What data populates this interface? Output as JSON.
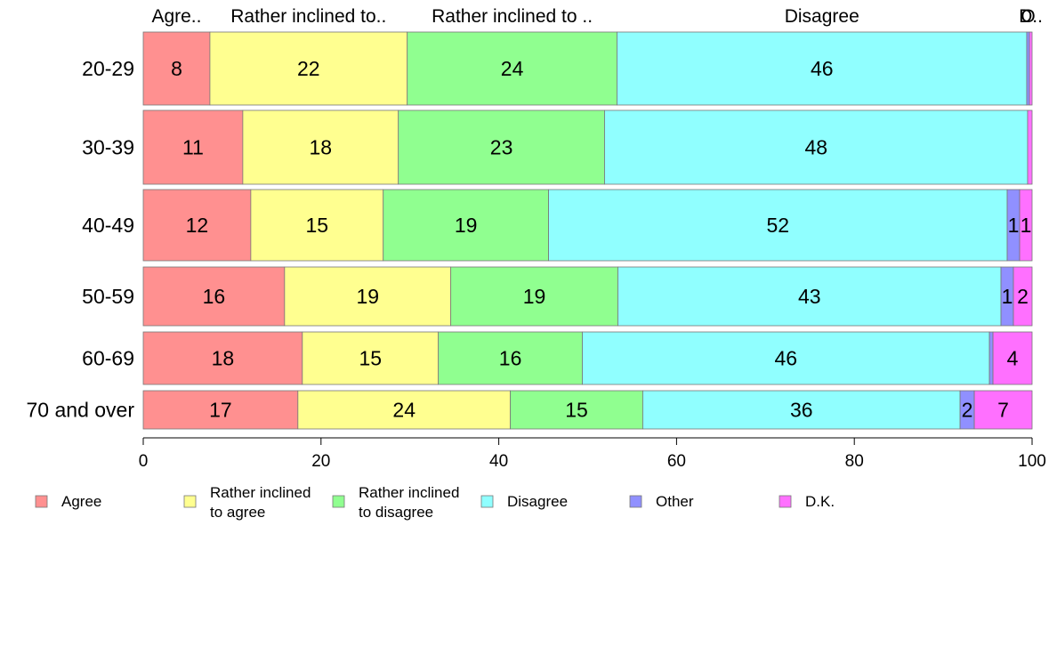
{
  "chart_data": {
    "type": "bar",
    "orientation": "horizontal",
    "stacked": true,
    "categories": [
      "20-29",
      "30-39",
      "40-49",
      "50-59",
      "60-69",
      "70 and over"
    ],
    "series": [
      {
        "name": "Agree",
        "color": "#FF9090",
        "values": [
          7.5,
          11.2,
          12.1,
          15.9,
          17.9,
          17.4
        ],
        "labels": [
          "8",
          "11",
          "12",
          "16",
          "18",
          "17"
        ]
      },
      {
        "name": "Rather inclined to agree",
        "legend_lines": [
          "Rather inclined",
          "to agree"
        ],
        "color": "#FFFF90",
        "values": [
          22.2,
          17.5,
          14.9,
          18.7,
          15.3,
          23.9
        ],
        "labels": [
          "22",
          "18",
          "15",
          "19",
          "15",
          "24"
        ]
      },
      {
        "name": "Rather inclined to disagree",
        "legend_lines": [
          "Rather inclined",
          "to disagree"
        ],
        "color": "#90FF90",
        "values": [
          23.6,
          23.2,
          18.6,
          18.8,
          16.2,
          14.9
        ],
        "labels": [
          "24",
          "23",
          "19",
          "19",
          "16",
          "15"
        ]
      },
      {
        "name": "Disagree",
        "color": "#90FFFF",
        "values": [
          46.1,
          47.6,
          51.6,
          43.1,
          45.8,
          35.7
        ],
        "labels": [
          "46",
          "48",
          "52",
          "43",
          "46",
          "36"
        ]
      },
      {
        "name": "Other",
        "color": "#9090FF",
        "values": [
          0.3,
          0.0,
          1.4,
          1.4,
          0.4,
          1.6
        ],
        "labels": [
          "",
          "",
          "1",
          "1",
          "",
          "2"
        ]
      },
      {
        "name": "D.K.",
        "color": "#FF70FF",
        "values": [
          0.3,
          0.5,
          1.4,
          2.1,
          4.4,
          6.5
        ],
        "labels": [
          "",
          "",
          "1",
          "2",
          "4",
          "7"
        ]
      }
    ],
    "top_labels": [
      "Agre..",
      "Rather inclined to..",
      "Rather inclined to ..",
      "Disagree",
      "O",
      "D.."
    ],
    "x_ticks": [
      "0",
      "20",
      "40",
      "60",
      "80",
      "100"
    ],
    "xlim": [
      0,
      100
    ],
    "grid": false,
    "legend_position": "bottom"
  }
}
